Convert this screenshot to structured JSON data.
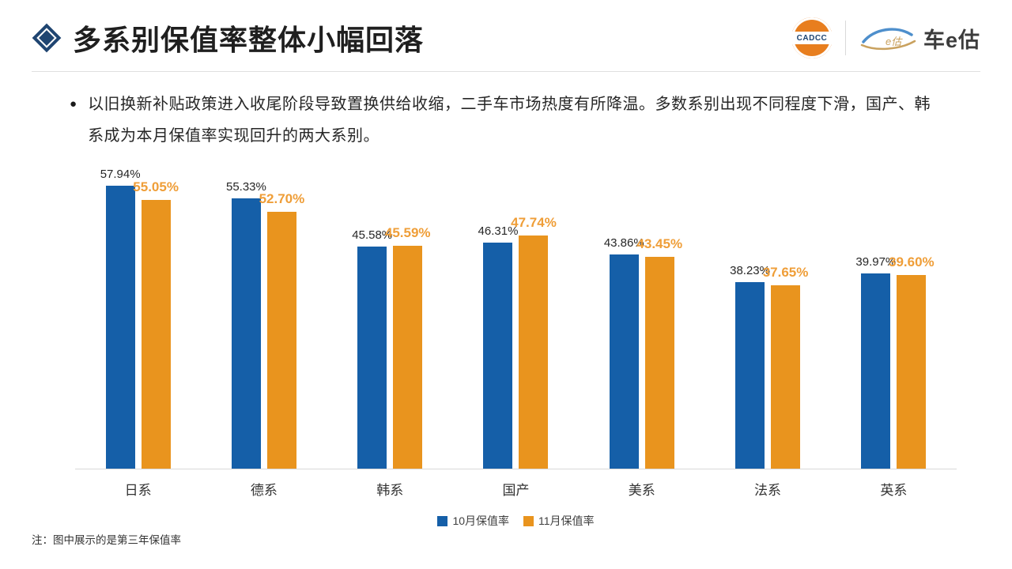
{
  "header": {
    "title": "多系别保值率整体小幅回落",
    "cadcc_text": "CADCC",
    "brand_text": "车e估"
  },
  "summary": {
    "bullet_text": "以旧换新补贴政策进入收尾阶段导致置换供给收缩，二手车市场热度有所降温。多数系别出现不同程度下滑，国产、韩系成为本月保值率实现回升的两大系别。"
  },
  "chart_data": {
    "type": "bar",
    "title": "",
    "categories": [
      "日系",
      "德系",
      "韩系",
      "国产",
      "美系",
      "法系",
      "英系"
    ],
    "series": [
      {
        "name": "10月保值率",
        "color": "#155FA8",
        "label_color": "#262626",
        "values": [
          57.94,
          55.33,
          45.58,
          46.31,
          43.86,
          38.23,
          39.97
        ],
        "labels": [
          "57.94%",
          "55.33%",
          "45.58%",
          "46.31%",
          "43.86%",
          "38.23%",
          "39.97%"
        ]
      },
      {
        "name": "11月保值率",
        "color": "#E9941E",
        "label_color": "#EF9E38",
        "values": [
          55.05,
          52.7,
          45.59,
          47.74,
          43.45,
          37.65,
          39.6
        ],
        "labels": [
          "55.05%",
          "52.70%",
          "45.59%",
          "47.74%",
          "43.45%",
          "37.65%",
          "39.60%"
        ]
      }
    ],
    "value_suffix": "%",
    "ylim": [
      0,
      62.5
    ],
    "grid": false,
    "legend_position": "bottom",
    "baseline_axis_color": "#D9D9D9"
  },
  "footer": {
    "note": "注：图中展示的是第三年保值率"
  }
}
